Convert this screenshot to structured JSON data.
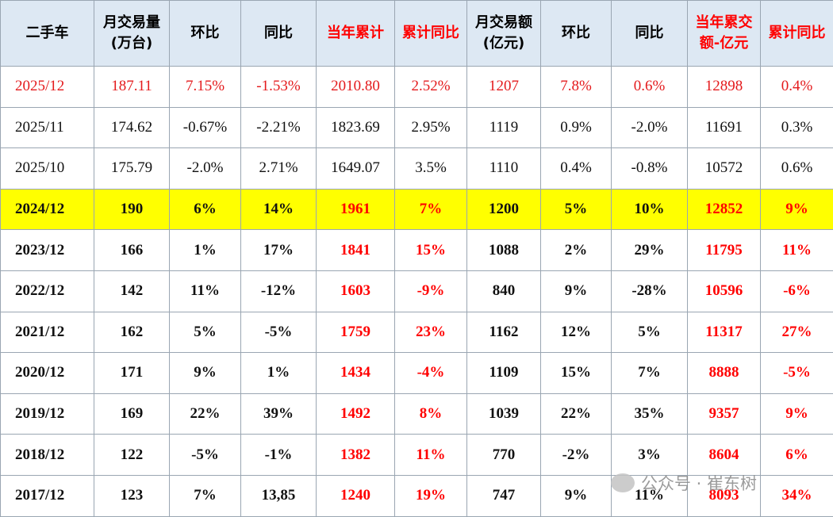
{
  "table": {
    "header": [
      [
        "二手车"
      ],
      [
        "月交易量",
        "(万台)"
      ],
      [
        "环比"
      ],
      [
        "同比"
      ],
      [
        "当年累计"
      ],
      [
        "累计同比"
      ],
      [
        "月交易额",
        "(亿元)"
      ],
      [
        "环比"
      ],
      [
        "同比"
      ],
      [
        "当年累交",
        "额-亿元"
      ],
      [
        "累计同比"
      ]
    ],
    "rows": [
      [
        "2025/12",
        "187.11",
        "7.15%",
        "-1.53%",
        "2010.80",
        "2.52%",
        "1207",
        "7.8%",
        "0.6%",
        "12898",
        "0.4%"
      ],
      [
        "2025/11",
        "174.62",
        "-0.67%",
        "-2.21%",
        "1823.69",
        "2.95%",
        "1119",
        "0.9%",
        "-2.0%",
        "11691",
        "0.3%"
      ],
      [
        "2025/10",
        "175.79",
        "-2.0%",
        "2.71%",
        "1649.07",
        "3.5%",
        "1110",
        "0.4%",
        "-0.8%",
        "10572",
        "0.6%"
      ],
      [
        "2024/12",
        "190",
        "6%",
        "14%",
        "1961",
        "7%",
        "1200",
        "5%",
        "10%",
        "12852",
        "9%"
      ],
      [
        "2023/12",
        "166",
        "1%",
        "17%",
        "1841",
        "15%",
        "1088",
        "2%",
        "29%",
        "11795",
        "11%"
      ],
      [
        "2022/12",
        "142",
        "11%",
        "-12%",
        "1603",
        "-9%",
        "840",
        "9%",
        "-28%",
        "10596",
        "-6%"
      ],
      [
        "2021/12",
        "162",
        "5%",
        "-5%",
        "1759",
        "23%",
        "1162",
        "12%",
        "5%",
        "11317",
        "27%"
      ],
      [
        "2020/12",
        "171",
        "9%",
        "1%",
        "1434",
        "-4%",
        "1109",
        "15%",
        "7%",
        "8888",
        "-5%"
      ],
      [
        "2019/12",
        "169",
        "22%",
        "39%",
        "1492",
        "8%",
        "1039",
        "22%",
        "35%",
        "9357",
        "9%"
      ],
      [
        "2018/12",
        "122",
        "-5%",
        "-1%",
        "1382",
        "11%",
        "770",
        "-2%",
        "3%",
        "8604",
        "6%"
      ],
      [
        "2017/12",
        "123",
        "7%",
        "13,85",
        "1240",
        "19%",
        "747",
        "9%",
        "11%",
        "8093",
        "34%"
      ]
    ]
  },
  "watermark": "公众号 · 崔东树"
}
